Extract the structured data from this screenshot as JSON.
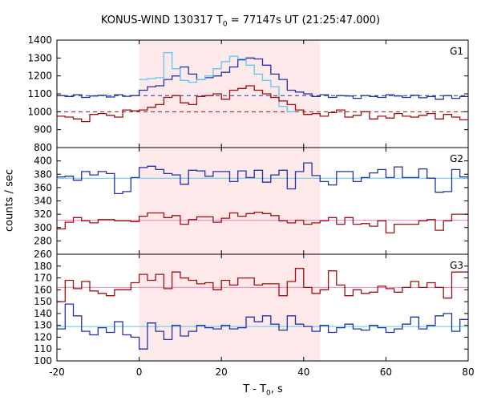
{
  "title": {
    "prefix": "KONUS-WIND 130317 T",
    "sub": "0",
    "suffix": " = 77147s UT (21:25:47.000)"
  },
  "xlabel": {
    "prefix": "T - T",
    "sub": "0",
    "suffix": ", s"
  },
  "ylabel": "counts / sec",
  "colors": {
    "background_band": "#fde8ea",
    "dark_blue": "#2233aa",
    "light_blue": "#5bc8f0",
    "dark_red": "#a01010",
    "pink": "#f080c0",
    "frame": "#000000"
  },
  "chart_data": {
    "type": "line",
    "subtype": "step light curves",
    "x_axis": {
      "xlim": [
        -20,
        80
      ],
      "ticks": [
        -20,
        0,
        20,
        40,
        60,
        80
      ]
    },
    "shaded_interval": [
      0,
      44
    ],
    "panels": [
      {
        "name": "G1",
        "ylim": [
          800,
          1400
        ],
        "yticks": [
          800,
          900,
          1000,
          1100,
          1200,
          1300,
          1400
        ],
        "bin_edges": [
          -20,
          -18,
          -16,
          -14,
          -12,
          -10,
          -8,
          -6,
          -4,
          -2,
          0,
          2,
          4,
          6,
          8,
          10,
          12,
          14,
          16,
          18,
          20,
          22,
          24,
          26,
          28,
          30,
          32,
          34,
          36,
          38,
          40,
          42,
          44,
          46,
          48,
          50,
          52,
          54,
          56,
          58,
          60,
          62,
          64,
          66,
          68,
          70,
          72,
          74,
          76,
          78,
          80
        ],
        "series": [
          {
            "color": "#2233aa",
            "values": [
              1090,
              1085,
              1095,
              1080,
              1088,
              1092,
              1082,
              1095,
              1086,
              1090,
              1120,
              1140,
              1145,
              1180,
              1200,
              1250,
              1210,
              1180,
              1190,
              1200,
              1220,
              1250,
              1290,
              1300,
              1295,
              1260,
              1210,
              1180,
              1120,
              1110,
              1100,
              1085,
              1095,
              1080,
              1090,
              1088,
              1075,
              1090,
              1085,
              1080,
              1095,
              1088,
              1080,
              1092,
              1078,
              1085,
              1070,
              1090,
              1075,
              1085
            ]
          },
          {
            "color": "#5bc8f0",
            "values": [
              null,
              null,
              null,
              null,
              null,
              null,
              null,
              null,
              null,
              null,
              1180,
              1185,
              1190,
              1330,
              1240,
              1175,
              1165,
              1180,
              1200,
              1240,
              1280,
              1310,
              1295,
              1260,
              1210,
              1175,
              1140,
              1030,
              1000,
              null,
              null,
              null,
              null,
              null,
              null,
              null,
              null,
              null,
              null,
              null,
              null,
              null,
              null,
              null,
              null,
              null,
              null,
              null,
              null,
              null
            ]
          },
          {
            "color": "#a01010",
            "values": [
              975,
              970,
              960,
              945,
              985,
              990,
              980,
              970,
              1010,
              1005,
              1010,
              1025,
              1040,
              1080,
              1090,
              1050,
              1040,
              1085,
              1090,
              1100,
              1070,
              1120,
              1130,
              1145,
              1120,
              1100,
              1080,
              1060,
              1040,
              1010,
              985,
              990,
              975,
              995,
              1010,
              970,
              980,
              1000,
              960,
              975,
              965,
              990,
              975,
              970,
              980,
              990,
              960,
              985,
              970,
              955
            ]
          }
        ],
        "reference_lines": [
          {
            "color": "#2233aa",
            "style": "dashed",
            "y": 1090
          },
          {
            "color": "#a01010",
            "style": "dashed",
            "y": 1000
          }
        ]
      },
      {
        "name": "G2",
        "ylim": [
          260,
          420
        ],
        "yticks": [
          260,
          280,
          300,
          320,
          340,
          360,
          380,
          400
        ],
        "bin_edges": [
          -20,
          -18,
          -16,
          -14,
          -12,
          -10,
          -8,
          -6,
          -4,
          -2,
          0,
          2,
          4,
          6,
          8,
          10,
          12,
          14,
          16,
          18,
          20,
          22,
          24,
          26,
          28,
          30,
          32,
          34,
          36,
          38,
          40,
          42,
          44,
          46,
          48,
          50,
          52,
          54,
          56,
          58,
          60,
          62,
          64,
          66,
          68,
          70,
          72,
          74,
          76,
          78,
          80
        ],
        "series": [
          {
            "color": "#2233aa",
            "values": [
              376,
              377,
              371,
              384,
              379,
              384,
              381,
              351,
              354,
              375,
              390,
              392,
              387,
              381,
              379,
              365,
              386,
              385,
              377,
              384,
              384,
              369,
              385,
              375,
              386,
              368,
              379,
              386,
              358,
              384,
              397,
              378,
              369,
              364,
              384,
              384,
              369,
              375,
              382,
              387,
              375,
              391,
              375,
              375,
              388,
              374,
              353,
              354,
              387,
              376
            ]
          },
          {
            "color": "#a01010",
            "values": [
              298,
              308,
              315,
              310,
              307,
              312,
              312,
              310,
              310,
              309,
              317,
              322,
              322,
              315,
              318,
              305,
              312,
              316,
              316,
              308,
              314,
              322,
              317,
              321,
              323,
              321,
              318,
              310,
              307,
              311,
              305,
              307,
              310,
              315,
              305,
              315,
              305,
              306,
              302,
              310,
              292,
              305,
              305,
              305,
              310,
              312,
              296,
              310,
              320,
              320
            ]
          }
        ],
        "reference_lines": [
          {
            "color": "#5bc8f0",
            "style": "solid",
            "y": 374
          },
          {
            "color": "#f080c0",
            "style": "solid",
            "y": 311
          }
        ]
      },
      {
        "name": "G3",
        "ylim": [
          100,
          190
        ],
        "yticks": [
          100,
          110,
          120,
          130,
          140,
          150,
          160,
          170,
          180
        ],
        "bin_edges": [
          -20,
          -18,
          -16,
          -14,
          -12,
          -10,
          -8,
          -6,
          -4,
          -2,
          0,
          2,
          4,
          6,
          8,
          10,
          12,
          14,
          16,
          18,
          20,
          22,
          24,
          26,
          28,
          30,
          32,
          34,
          36,
          38,
          40,
          42,
          44,
          46,
          48,
          50,
          52,
          54,
          56,
          58,
          60,
          62,
          64,
          66,
          68,
          70,
          72,
          74,
          76,
          78,
          80
        ],
        "series": [
          {
            "color": "#2233aa",
            "values": [
              127,
              148,
              138,
              125,
              122,
              128,
              124,
              133,
              122,
              120,
              110,
              132,
              125,
              118,
              130,
              121,
              125,
              130,
              128,
              127,
              130,
              127,
              128,
              137,
              133,
              138,
              131,
              126,
              138,
              131,
              129,
              125,
              130,
              124,
              128,
              131,
              127,
              126,
              130,
              128,
              124,
              127,
              131,
              137,
              127,
              130,
              138,
              140,
              125,
              135
            ]
          },
          {
            "color": "#a01010",
            "values": [
              150,
              168,
              161,
              167,
              159,
              157,
              155,
              160,
              160,
              166,
              173,
              168,
              173,
              161,
              175,
              170,
              168,
              165,
              166,
              160,
              168,
              164,
              170,
              170,
              164,
              165,
              165,
              155,
              167,
              178,
              162,
              157,
              160,
              176,
              164,
              155,
              160,
              157,
              158,
              163,
              161,
              158,
              162,
              167,
              162,
              166,
              162,
              153,
              175,
              175
            ]
          }
        ],
        "reference_lines": [
          {
            "color": "#f080c0",
            "style": "solid",
            "y": 162
          },
          {
            "color": "#5bc8f0",
            "style": "solid",
            "y": 129
          }
        ]
      }
    ]
  }
}
